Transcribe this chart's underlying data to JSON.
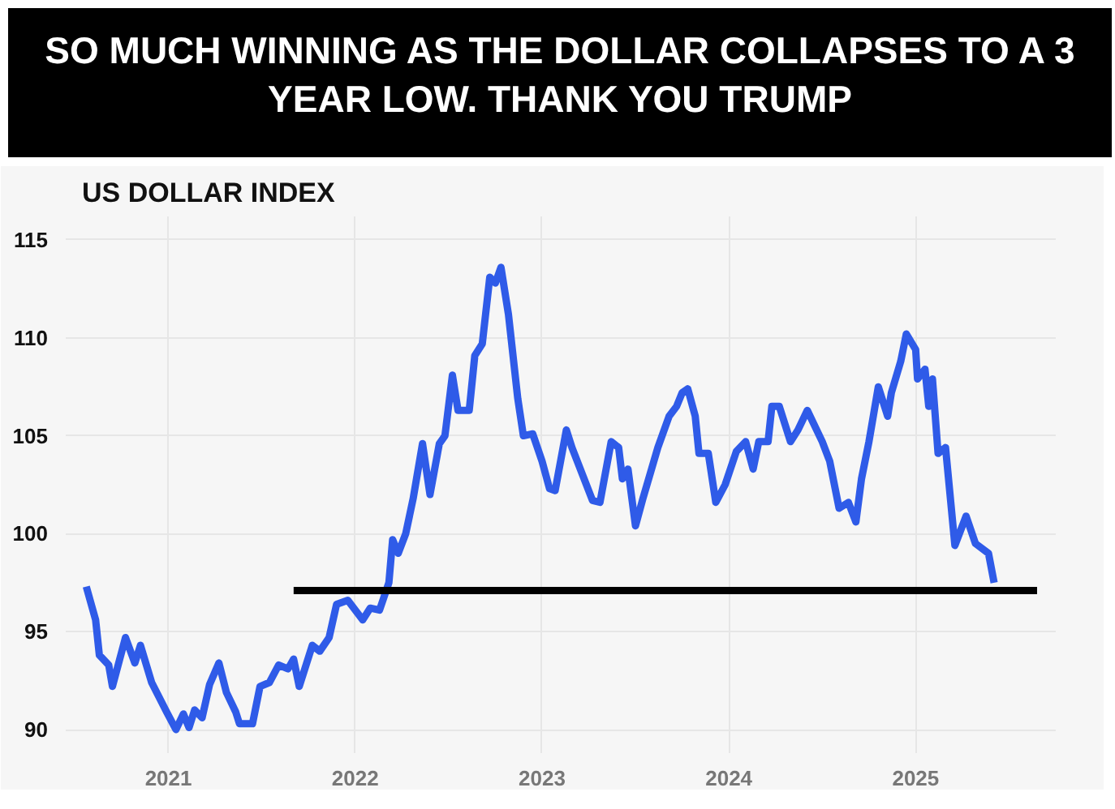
{
  "chart_data": {
    "type": "line",
    "title": "SO MUCH WINNING AS THE DOLLAR COLLAPSES TO A 3 YEAR LOW. THANK YOU TRUMP",
    "subtitle": "US DOLLAR INDEX",
    "series": [
      {
        "color": "#2f5be8",
        "x": [
          2020.56,
          2020.61,
          2020.63,
          2020.68,
          2020.7,
          2020.77,
          2020.82,
          2020.85,
          2020.91,
          2020.99,
          2021.04,
          2021.08,
          2021.11,
          2021.14,
          2021.18,
          2021.22,
          2021.27,
          2021.31,
          2021.36,
          2021.38,
          2021.45,
          2021.49,
          2021.54,
          2021.59,
          2021.64,
          2021.67,
          2021.7,
          2021.77,
          2021.81,
          2021.86,
          2021.9,
          2021.96,
          2022.04,
          2022.08,
          2022.13,
          2022.18,
          2022.2,
          2022.23,
          2022.27,
          2022.31,
          2022.36,
          2022.4,
          2022.45,
          2022.48,
          2022.52,
          2022.55,
          2022.61,
          2022.64,
          2022.68,
          2022.72,
          2022.75,
          2022.78,
          2022.82,
          2022.87,
          2022.9,
          2022.95,
          2023.0,
          2023.04,
          2023.07,
          2023.13,
          2023.16,
          2023.27,
          2023.31,
          2023.37,
          2023.41,
          2023.43,
          2023.46,
          2023.5,
          2023.54,
          2023.62,
          2023.68,
          2023.72,
          2023.75,
          2023.78,
          2023.82,
          2023.84,
          2023.89,
          2023.93,
          2023.98,
          2024.04,
          2024.09,
          2024.13,
          2024.16,
          2024.21,
          2024.23,
          2024.27,
          2024.33,
          2024.37,
          2024.42,
          2024.5,
          2024.54,
          2024.59,
          2024.64,
          2024.68,
          2024.71,
          2024.75,
          2024.8,
          2024.85,
          2024.87,
          2024.92,
          2024.95,
          2025.0,
          2025.01,
          2025.05,
          2025.07,
          2025.09,
          2025.12,
          2025.16,
          2025.21,
          2025.27,
          2025.32,
          2025.39,
          2025.42
        ],
        "values": [
          97.3,
          95.6,
          93.8,
          93.3,
          92.2,
          94.7,
          93.4,
          94.3,
          92.4,
          90.9,
          90.0,
          90.8,
          90.1,
          91.0,
          90.6,
          92.3,
          93.4,
          91.9,
          90.9,
          90.3,
          90.3,
          92.2,
          92.4,
          93.3,
          93.1,
          93.6,
          92.2,
          94.3,
          94.0,
          94.7,
          96.4,
          96.6,
          95.6,
          96.2,
          96.1,
          97.5,
          99.7,
          99.0,
          100.0,
          101.8,
          104.6,
          102.0,
          104.6,
          105.0,
          108.1,
          106.3,
          106.3,
          109.1,
          109.7,
          113.1,
          112.8,
          113.6,
          111.2,
          106.9,
          105.0,
          105.1,
          103.7,
          102.3,
          102.2,
          105.3,
          104.4,
          101.7,
          101.6,
          104.7,
          104.4,
          102.8,
          103.3,
          100.4,
          101.8,
          104.4,
          106.0,
          106.5,
          107.2,
          107.4,
          106.0,
          104.1,
          104.1,
          101.6,
          102.5,
          104.2,
          104.7,
          103.3,
          104.7,
          104.7,
          106.5,
          106.5,
          104.7,
          105.3,
          106.3,
          104.7,
          103.7,
          101.3,
          101.6,
          100.6,
          102.8,
          104.7,
          107.5,
          106.0,
          107.2,
          108.8,
          110.2,
          109.4,
          107.9,
          108.4,
          106.5,
          107.9,
          104.1,
          104.4,
          99.4,
          100.9,
          99.5,
          99.0,
          97.5
        ]
      },
      {
        "color": "#000000",
        "x": [
          2021.67,
          2025.65
        ],
        "values": [
          97.1,
          97.1
        ]
      }
    ],
    "xlim": [
      2020.45,
      2025.75
    ],
    "ylim": [
      88.8,
      116.2
    ],
    "xticks": [
      2021,
      2022,
      2023,
      2024,
      2025
    ],
    "yticks": [
      90,
      95,
      100,
      105,
      110,
      115
    ],
    "grid": true
  }
}
